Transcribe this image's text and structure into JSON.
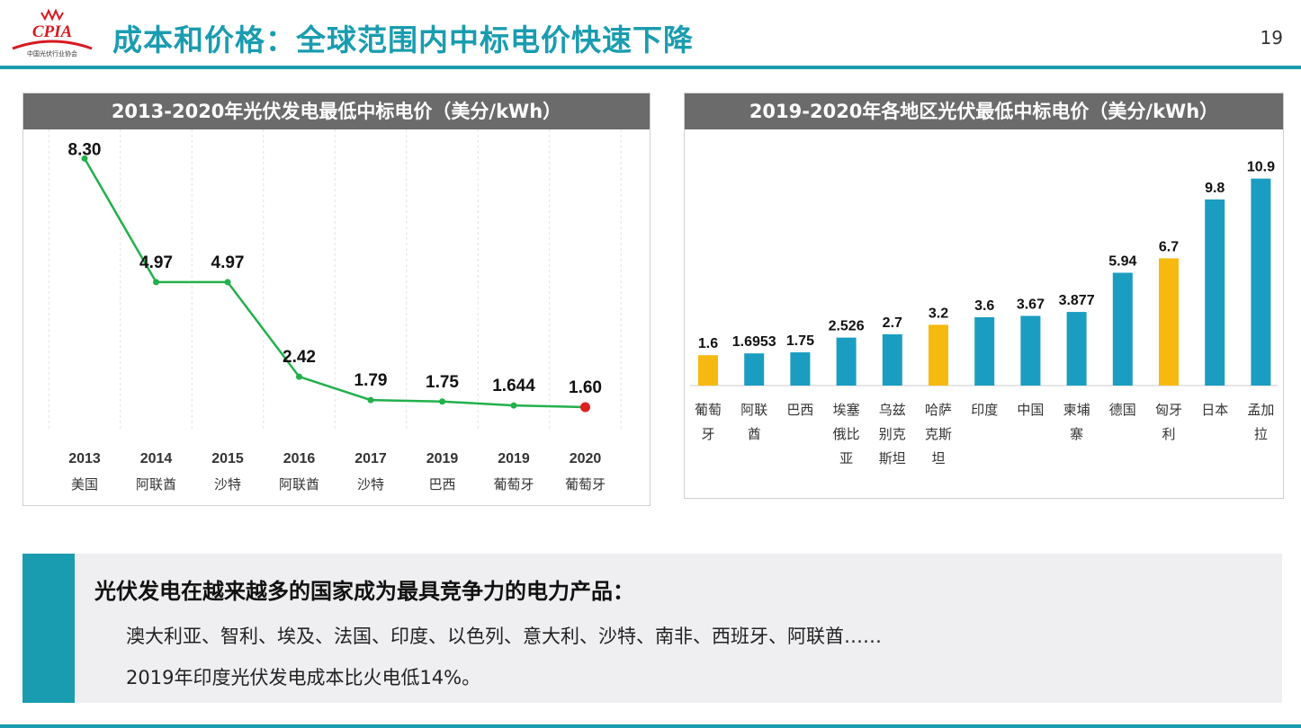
{
  "header": {
    "logo_text": "CPIA",
    "logo_subtext": "中国光伏行业协会",
    "title": "成本和价格：全球范围内中标电价快速下降",
    "page_number": "19"
  },
  "colors": {
    "accent": "#1a9cb0",
    "line": "#22b04b",
    "endpoint": "#e02020",
    "bar_primary": "#1b9dc1",
    "bar_highlight": "#f6b910",
    "panel_title_bg": "#6b6b6b",
    "logo_red": "#d71920"
  },
  "chart_data": [
    {
      "type": "line",
      "title": "2013-2020年光伏发电最低中标电价（美分/kWh）",
      "categories": [
        {
          "year": "2013",
          "country": "美国"
        },
        {
          "year": "2014",
          "country": "阿联酋"
        },
        {
          "year": "2015",
          "country": "沙特"
        },
        {
          "year": "2016",
          "country": "阿联酋"
        },
        {
          "year": "2017",
          "country": "沙特"
        },
        {
          "year": "2019",
          "country": "巴西"
        },
        {
          "year": "2019",
          "country": "葡萄牙"
        },
        {
          "year": "2020",
          "country": "葡萄牙"
        }
      ],
      "values": [
        8.3,
        4.97,
        4.97,
        2.42,
        1.79,
        1.75,
        1.644,
        1.6
      ],
      "labels": [
        "8.30",
        "4.97",
        "4.97",
        "2.42",
        "1.79",
        "1.75",
        "1.644",
        "1.60"
      ],
      "ylim": [
        0,
        8.6
      ],
      "grid": "vertical dashed"
    },
    {
      "type": "bar",
      "title": "2019-2020年各地区光伏最低中标电价（美分/kWh）",
      "categories": [
        [
          "葡萄",
          "牙"
        ],
        [
          "阿联",
          "酋"
        ],
        [
          "巴西"
        ],
        [
          "埃塞",
          "俄比",
          "亚"
        ],
        [
          "乌兹",
          "别克",
          "斯坦"
        ],
        [
          "哈萨",
          "克斯",
          "坦"
        ],
        [
          "印度"
        ],
        [
          "中国"
        ],
        [
          "柬埔",
          "寨"
        ],
        [
          "德国"
        ],
        [
          "匈牙",
          "利"
        ],
        [
          "日本"
        ],
        [
          "孟加",
          "拉"
        ]
      ],
      "values": [
        1.6,
        1.6953,
        1.75,
        2.526,
        2.7,
        3.2,
        3.6,
        3.67,
        3.877,
        5.94,
        6.7,
        9.8,
        10.9
      ],
      "labels": [
        "1.6",
        "1.6953",
        "1.75",
        "2.526",
        "2.7",
        "3.2",
        "3.6",
        "3.67",
        "3.877",
        "5.94",
        "6.7",
        "9.8",
        "10.9"
      ],
      "highlight": [
        true,
        false,
        false,
        false,
        false,
        true,
        false,
        false,
        false,
        false,
        true,
        false,
        false
      ],
      "ylim": [
        0,
        11.5
      ]
    }
  ],
  "callout": {
    "heading": "光伏发电在越来越多的国家成为最具竞争力的电力产品：",
    "lines": [
      "澳大利亚、智利、埃及、法国、印度、以色列、意大利、沙特、南非、西班牙、阿联酋……",
      "2019年印度光伏发电成本比火电低14%。"
    ]
  }
}
